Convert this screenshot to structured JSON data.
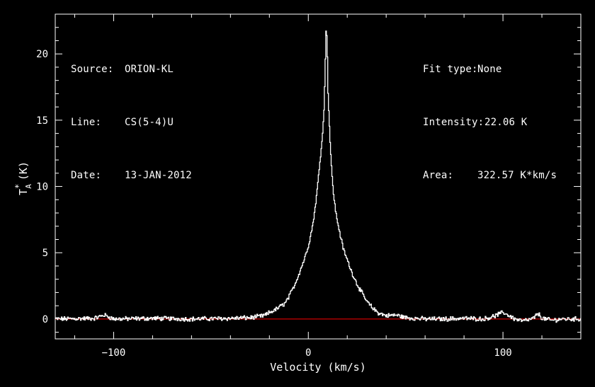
{
  "info_left": [
    {
      "label": "Source:",
      "value": "ORION-KL"
    },
    {
      "label": "Line:",
      "value": "CS(5-4)U"
    },
    {
      "label": "Date:",
      "value": "13-JAN-2012"
    }
  ],
  "info_right": [
    {
      "label": "Fit type:",
      "value": "None"
    },
    {
      "label": "Intensity:",
      "value": "22.06 K"
    },
    {
      "label": "Area:",
      "value": "322.57 K*km/s"
    }
  ],
  "colors": {
    "background": "#000000",
    "axes": "#ffffff",
    "spectrum": "#ffffff",
    "baseline": "#cc0000"
  },
  "chart_data": {
    "type": "line",
    "xlabel": "Velocity (km/s)",
    "ylabel_main": "T",
    "ylabel_sub": "A",
    "ylabel_sup": "*",
    "ylabel_unit": "(K)",
    "xlim": [
      -130,
      140
    ],
    "ylim": [
      -1.5,
      23
    ],
    "xticks": [
      -100,
      0,
      100
    ],
    "yticks": [
      0,
      5,
      10,
      15,
      20
    ],
    "baseline_y": 0,
    "series": [
      {
        "x": [
          -130,
          -110,
          -105,
          -100,
          -80,
          -60,
          -40,
          -30,
          -25,
          -22,
          -20,
          -17,
          -15,
          -12,
          -10,
          -8,
          -6,
          -4,
          -2,
          0,
          2,
          3,
          4,
          5,
          6,
          7,
          8,
          8.5,
          9,
          9.5,
          10,
          11,
          12,
          13,
          14,
          16,
          18,
          20,
          22,
          25,
          28,
          30,
          33,
          36,
          40,
          45,
          50,
          55,
          60,
          70,
          80,
          90,
          95,
          100,
          103,
          106,
          110,
          115,
          118,
          120,
          125,
          130,
          140
        ],
        "y": [
          0.0,
          0.05,
          0.3,
          0.0,
          0.05,
          0.0,
          0.05,
          0.1,
          0.2,
          0.3,
          0.5,
          0.7,
          0.9,
          1.2,
          1.7,
          2.3,
          3.0,
          3.8,
          4.6,
          5.6,
          7.0,
          8.0,
          9.2,
          10.6,
          12.2,
          13.6,
          16.0,
          19.0,
          22.06,
          21.0,
          17.0,
          13.5,
          10.8,
          9.2,
          8.0,
          6.5,
          5.2,
          4.4,
          3.6,
          2.6,
          1.8,
          1.3,
          0.8,
          0.45,
          0.25,
          0.3,
          0.1,
          0.05,
          0.0,
          0.0,
          0.05,
          0.0,
          0.2,
          0.5,
          0.25,
          0.0,
          -0.15,
          0.0,
          0.4,
          0.05,
          -0.1,
          0.0,
          0.0
        ]
      }
    ]
  }
}
